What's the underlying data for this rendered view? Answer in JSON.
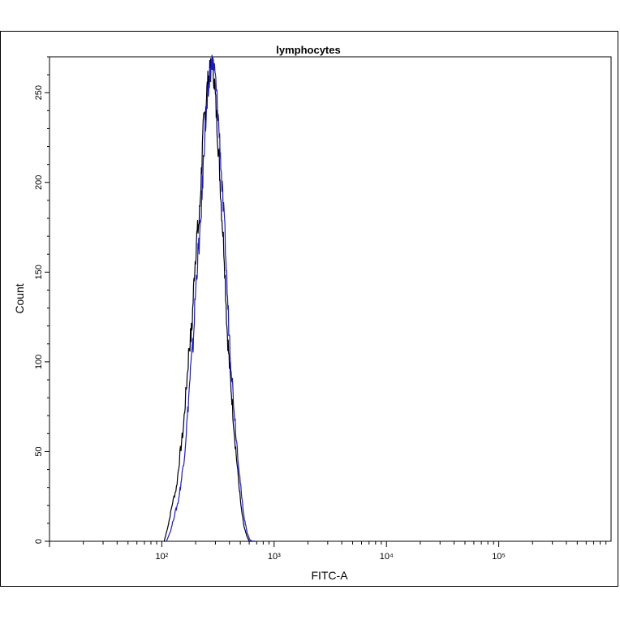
{
  "chart_data": {
    "type": "line",
    "title": "lymphocytes",
    "xlabel": "FITC-A",
    "ylabel": "Count",
    "x_scale": "log",
    "xlim": [
      10,
      1000000
    ],
    "ylim": [
      0,
      270
    ],
    "grid": false,
    "x_tick_values": [
      100,
      1000,
      10000,
      100000
    ],
    "x_tick_labels": [
      "10²",
      "10³",
      "10⁴",
      "10⁵"
    ],
    "y_tick_values": [
      0,
      50,
      100,
      150,
      200,
      250
    ],
    "y_tick_labels": [
      "0",
      "50",
      "100",
      "150",
      "200",
      "250"
    ],
    "series": [
      {
        "color": "#000000",
        "x": [
          105,
          115,
          125,
          135,
          145,
          155,
          165,
          175,
          185,
          195,
          205,
          215,
          225,
          235,
          245,
          255,
          265,
          280,
          295,
          310,
          325,
          340,
          360,
          380,
          400,
          420,
          450,
          480,
          510,
          540,
          570,
          600,
          640,
          680
        ],
        "y": [
          0,
          10,
          22,
          30,
          48,
          62,
          85,
          108,
          118,
          150,
          170,
          178,
          205,
          232,
          242,
          255,
          260,
          268,
          255,
          232,
          210,
          185,
          160,
          120,
          98,
          80,
          55,
          35,
          18,
          8,
          3,
          0,
          0,
          0
        ]
      },
      {
        "color": "#1a1acc",
        "x": [
          110,
          120,
          130,
          140,
          150,
          160,
          170,
          180,
          190,
          200,
          210,
          220,
          230,
          240,
          250,
          260,
          270,
          285,
          300,
          315,
          330,
          345,
          365,
          385,
          405,
          425,
          455,
          485,
          515,
          545,
          575,
          605,
          640,
          680
        ],
        "y": [
          0,
          6,
          15,
          22,
          35,
          50,
          72,
          95,
          110,
          140,
          160,
          172,
          198,
          225,
          238,
          250,
          262,
          268,
          258,
          240,
          220,
          195,
          170,
          135,
          108,
          88,
          62,
          42,
          24,
          12,
          5,
          1,
          0,
          0
        ]
      }
    ]
  }
}
